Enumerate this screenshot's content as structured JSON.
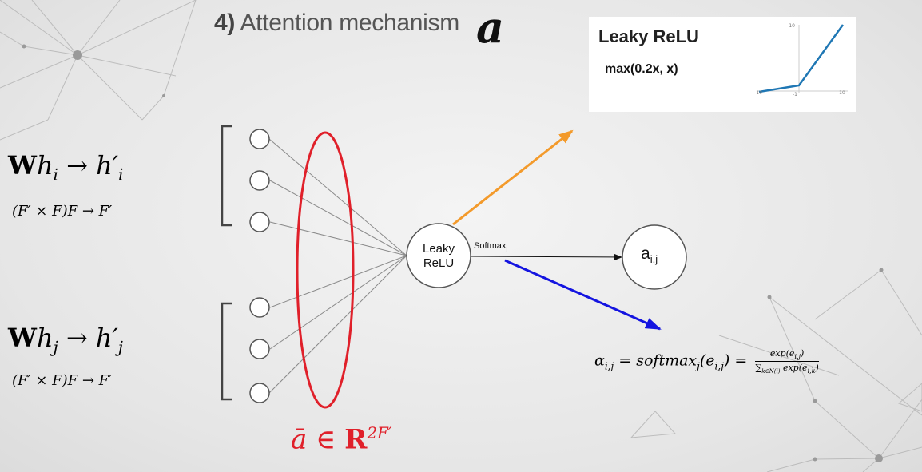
{
  "title": {
    "number": "4)",
    "text": "Attention mechanism",
    "symbol": "a"
  },
  "inset": {
    "title": "Leaky ReLU",
    "formula": "max(0.2x, x)",
    "ticks": {
      "y_top": "10",
      "x_left": "-10",
      "x_mid": "-1",
      "x_right": "10"
    },
    "line_color": "#1f77b4"
  },
  "left_equations": {
    "wi": {
      "W": "W",
      "h": "h",
      "sub": "i",
      "arrow": "→",
      "hp": "h′",
      "hp_sub": "i",
      "dims": "(F′ × F)F → F′"
    },
    "wj": {
      "W": "W",
      "h": "h",
      "sub": "j",
      "arrow": "→",
      "hp": "h′",
      "hp_sub": "j",
      "dims": "(F′ × F)F → F′"
    }
  },
  "nodes": {
    "leaky_line1": "Leaky",
    "leaky_line2": "ReLU",
    "softmax": "Softmax",
    "softmax_sub": "j",
    "aij_base": "a",
    "aij_sub": "i,j"
  },
  "abar": {
    "base": "ā ∈ ",
    "R": "R",
    "exp": "2F′"
  },
  "alpha": {
    "lhs": "α",
    "lhs_sub": "i,j",
    "mid": " = softmax",
    "mid_sub": "j",
    "arg": "(e",
    "arg_sub": "i,j",
    "arg_close": ") = ",
    "numerator": "exp(e",
    "numerator_sub": "i,j",
    "numerator_close": ")",
    "denominator_sum": "∑",
    "denominator_sub": "k∈N(i)",
    "denominator": " exp(e",
    "denominator_sub2": "i,k",
    "denominator_close": ")"
  },
  "colors": {
    "ellipse": "#e0202a",
    "orange_arrow": "#f39a2b",
    "blue_arrow": "#1414e0"
  }
}
